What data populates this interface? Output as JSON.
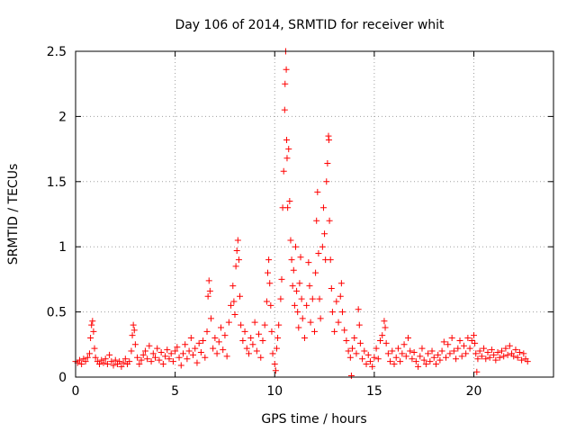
{
  "chart_data": {
    "type": "scatter",
    "title": "Day 106 of 2014, SRMTID for receiver whit",
    "xlabel": "GPS time / hours",
    "ylabel": "SRMTID / TECUs",
    "xlim": [
      0,
      24
    ],
    "ylim": [
      0,
      2.5
    ],
    "xticks": [
      0,
      5,
      10,
      15,
      20
    ],
    "xtick_labels": [
      "0",
      "5",
      "10",
      "15",
      "20"
    ],
    "yticks": [
      0,
      0.5,
      1,
      1.5,
      2,
      2.5
    ],
    "ytick_labels": [
      "0",
      "0.5",
      "1",
      "1.5",
      "2",
      "2.5"
    ],
    "grid": true,
    "marker": "+",
    "color": "#ff0000",
    "series": [
      {
        "name": "SRMTID",
        "points": [
          [
            0.0,
            0.12
          ],
          [
            0.1,
            0.11
          ],
          [
            0.2,
            0.13
          ],
          [
            0.3,
            0.1
          ],
          [
            0.4,
            0.14
          ],
          [
            0.5,
            0.12
          ],
          [
            0.6,
            0.15
          ],
          [
            0.7,
            0.18
          ],
          [
            0.75,
            0.3
          ],
          [
            0.8,
            0.4
          ],
          [
            0.85,
            0.43
          ],
          [
            0.9,
            0.35
          ],
          [
            0.95,
            0.22
          ],
          [
            1.0,
            0.15
          ],
          [
            1.1,
            0.12
          ],
          [
            1.2,
            0.1
          ],
          [
            1.3,
            0.13
          ],
          [
            1.4,
            0.11
          ],
          [
            1.5,
            0.14
          ],
          [
            1.6,
            0.1
          ],
          [
            1.7,
            0.17
          ],
          [
            1.8,
            0.12
          ],
          [
            1.9,
            0.09
          ],
          [
            2.0,
            0.13
          ],
          [
            2.1,
            0.1
          ],
          [
            2.2,
            0.12
          ],
          [
            2.3,
            0.08
          ],
          [
            2.4,
            0.11
          ],
          [
            2.5,
            0.14
          ],
          [
            2.6,
            0.1
          ],
          [
            2.7,
            0.12
          ],
          [
            2.8,
            0.2
          ],
          [
            2.85,
            0.32
          ],
          [
            2.9,
            0.4
          ],
          [
            2.95,
            0.36
          ],
          [
            3.0,
            0.25
          ],
          [
            3.1,
            0.15
          ],
          [
            3.2,
            0.1
          ],
          [
            3.3,
            0.13
          ],
          [
            3.4,
            0.17
          ],
          [
            3.5,
            0.2
          ],
          [
            3.6,
            0.14
          ],
          [
            3.7,
            0.24
          ],
          [
            3.8,
            0.12
          ],
          [
            3.9,
            0.18
          ],
          [
            4.0,
            0.15
          ],
          [
            4.1,
            0.22
          ],
          [
            4.2,
            0.13
          ],
          [
            4.3,
            0.19
          ],
          [
            4.4,
            0.1
          ],
          [
            4.5,
            0.16
          ],
          [
            4.6,
            0.21
          ],
          [
            4.7,
            0.14
          ],
          [
            4.8,
            0.18
          ],
          [
            4.9,
            0.12
          ],
          [
            5.0,
            0.2
          ],
          [
            5.1,
            0.23
          ],
          [
            5.2,
            0.15
          ],
          [
            5.3,
            0.09
          ],
          [
            5.4,
            0.18
          ],
          [
            5.5,
            0.25
          ],
          [
            5.6,
            0.14
          ],
          [
            5.7,
            0.2
          ],
          [
            5.8,
            0.3
          ],
          [
            5.9,
            0.17
          ],
          [
            6.0,
            0.22
          ],
          [
            6.1,
            0.11
          ],
          [
            6.2,
            0.26
          ],
          [
            6.3,
            0.19
          ],
          [
            6.4,
            0.28
          ],
          [
            6.5,
            0.15
          ],
          [
            6.6,
            0.35
          ],
          [
            6.65,
            0.62
          ],
          [
            6.7,
            0.74
          ],
          [
            6.75,
            0.66
          ],
          [
            6.8,
            0.45
          ],
          [
            6.9,
            0.22
          ],
          [
            7.0,
            0.3
          ],
          [
            7.1,
            0.18
          ],
          [
            7.2,
            0.27
          ],
          [
            7.3,
            0.38
          ],
          [
            7.4,
            0.21
          ],
          [
            7.5,
            0.32
          ],
          [
            7.6,
            0.16
          ],
          [
            7.7,
            0.42
          ],
          [
            7.8,
            0.55
          ],
          [
            7.9,
            0.7
          ],
          [
            7.95,
            0.58
          ],
          [
            8.0,
            0.48
          ],
          [
            8.05,
            0.85
          ],
          [
            8.1,
            0.97
          ],
          [
            8.15,
            1.05
          ],
          [
            8.2,
            0.9
          ],
          [
            8.25,
            0.62
          ],
          [
            8.3,
            0.4
          ],
          [
            8.4,
            0.28
          ],
          [
            8.5,
            0.35
          ],
          [
            8.6,
            0.22
          ],
          [
            8.7,
            0.18
          ],
          [
            8.8,
            0.3
          ],
          [
            8.9,
            0.25
          ],
          [
            9.0,
            0.42
          ],
          [
            9.1,
            0.2
          ],
          [
            9.2,
            0.33
          ],
          [
            9.3,
            0.15
          ],
          [
            9.4,
            0.28
          ],
          [
            9.5,
            0.4
          ],
          [
            9.6,
            0.58
          ],
          [
            9.65,
            0.8
          ],
          [
            9.7,
            0.9
          ],
          [
            9.75,
            0.72
          ],
          [
            9.8,
            0.55
          ],
          [
            9.85,
            0.35
          ],
          [
            9.9,
            0.18
          ],
          [
            10.0,
            0.1
          ],
          [
            10.05,
            0.05
          ],
          [
            10.1,
            0.22
          ],
          [
            10.15,
            0.3
          ],
          [
            10.2,
            0.4
          ],
          [
            10.3,
            0.6
          ],
          [
            10.35,
            0.75
          ],
          [
            10.4,
            1.3
          ],
          [
            10.45,
            1.58
          ],
          [
            10.5,
            2.05
          ],
          [
            10.52,
            2.25
          ],
          [
            10.55,
            2.5
          ],
          [
            10.58,
            2.36
          ],
          [
            10.6,
            1.82
          ],
          [
            10.62,
            1.68
          ],
          [
            10.65,
            1.3
          ],
          [
            10.7,
            1.75
          ],
          [
            10.75,
            1.35
          ],
          [
            10.8,
            1.05
          ],
          [
            10.85,
            0.9
          ],
          [
            10.9,
            0.7
          ],
          [
            10.95,
            0.82
          ],
          [
            11.0,
            0.55
          ],
          [
            11.05,
            1.0
          ],
          [
            11.1,
            0.66
          ],
          [
            11.15,
            0.5
          ],
          [
            11.2,
            0.38
          ],
          [
            11.25,
            0.72
          ],
          [
            11.3,
            0.92
          ],
          [
            11.35,
            0.6
          ],
          [
            11.4,
            0.45
          ],
          [
            11.5,
            0.3
          ],
          [
            11.6,
            0.55
          ],
          [
            11.7,
            0.88
          ],
          [
            11.75,
            0.7
          ],
          [
            11.8,
            0.42
          ],
          [
            11.9,
            0.6
          ],
          [
            12.0,
            0.35
          ],
          [
            12.05,
            0.8
          ],
          [
            12.1,
            1.2
          ],
          [
            12.15,
            1.42
          ],
          [
            12.2,
            0.95
          ],
          [
            12.25,
            0.6
          ],
          [
            12.3,
            0.45
          ],
          [
            12.4,
            1.0
          ],
          [
            12.45,
            1.3
          ],
          [
            12.5,
            1.1
          ],
          [
            12.55,
            0.9
          ],
          [
            12.6,
            1.5
          ],
          [
            12.65,
            1.64
          ],
          [
            12.7,
            1.85
          ],
          [
            12.72,
            1.82
          ],
          [
            12.75,
            1.2
          ],
          [
            12.8,
            0.9
          ],
          [
            12.85,
            0.68
          ],
          [
            12.9,
            0.5
          ],
          [
            13.0,
            0.35
          ],
          [
            13.1,
            0.58
          ],
          [
            13.2,
            0.42
          ],
          [
            13.3,
            0.62
          ],
          [
            13.35,
            0.72
          ],
          [
            13.4,
            0.5
          ],
          [
            13.5,
            0.36
          ],
          [
            13.6,
            0.28
          ],
          [
            13.7,
            0.2
          ],
          [
            13.8,
            0.15
          ],
          [
            13.85,
            0.01
          ],
          [
            13.9,
            0.22
          ],
          [
            14.0,
            0.3
          ],
          [
            14.1,
            0.18
          ],
          [
            14.2,
            0.52
          ],
          [
            14.25,
            0.4
          ],
          [
            14.3,
            0.26
          ],
          [
            14.4,
            0.14
          ],
          [
            14.5,
            0.2
          ],
          [
            14.6,
            0.1
          ],
          [
            14.7,
            0.17
          ],
          [
            14.8,
            0.12
          ],
          [
            14.9,
            0.08
          ],
          [
            15.0,
            0.15
          ],
          [
            15.1,
            0.22
          ],
          [
            15.2,
            0.14
          ],
          [
            15.3,
            0.28
          ],
          [
            15.4,
            0.32
          ],
          [
            15.5,
            0.43
          ],
          [
            15.55,
            0.38
          ],
          [
            15.6,
            0.26
          ],
          [
            15.7,
            0.18
          ],
          [
            15.8,
            0.12
          ],
          [
            15.9,
            0.2
          ],
          [
            16.0,
            0.1
          ],
          [
            16.1,
            0.15
          ],
          [
            16.2,
            0.22
          ],
          [
            16.3,
            0.12
          ],
          [
            16.4,
            0.18
          ],
          [
            16.5,
            0.25
          ],
          [
            16.6,
            0.16
          ],
          [
            16.7,
            0.3
          ],
          [
            16.8,
            0.2
          ],
          [
            16.9,
            0.14
          ],
          [
            17.0,
            0.19
          ],
          [
            17.1,
            0.12
          ],
          [
            17.2,
            0.08
          ],
          [
            17.3,
            0.16
          ],
          [
            17.4,
            0.22
          ],
          [
            17.5,
            0.13
          ],
          [
            17.6,
            0.1
          ],
          [
            17.7,
            0.18
          ],
          [
            17.8,
            0.12
          ],
          [
            17.9,
            0.2
          ],
          [
            18.0,
            0.15
          ],
          [
            18.1,
            0.1
          ],
          [
            18.2,
            0.17
          ],
          [
            18.3,
            0.13
          ],
          [
            18.4,
            0.2
          ],
          [
            18.5,
            0.27
          ],
          [
            18.6,
            0.15
          ],
          [
            18.7,
            0.25
          ],
          [
            18.8,
            0.18
          ],
          [
            18.9,
            0.3
          ],
          [
            19.0,
            0.2
          ],
          [
            19.1,
            0.14
          ],
          [
            19.2,
            0.22
          ],
          [
            19.3,
            0.28
          ],
          [
            19.4,
            0.16
          ],
          [
            19.5,
            0.24
          ],
          [
            19.6,
            0.18
          ],
          [
            19.7,
            0.3
          ],
          [
            19.8,
            0.22
          ],
          [
            19.9,
            0.28
          ],
          [
            20.0,
            0.32
          ],
          [
            20.05,
            0.26
          ],
          [
            20.1,
            0.18
          ],
          [
            20.15,
            0.04
          ],
          [
            20.2,
            0.14
          ],
          [
            20.3,
            0.2
          ],
          [
            20.4,
            0.16
          ],
          [
            20.5,
            0.22
          ],
          [
            20.6,
            0.14
          ],
          [
            20.7,
            0.19
          ],
          [
            20.8,
            0.15
          ],
          [
            20.9,
            0.21
          ],
          [
            21.0,
            0.17
          ],
          [
            21.1,
            0.13
          ],
          [
            21.2,
            0.19
          ],
          [
            21.3,
            0.15
          ],
          [
            21.4,
            0.2
          ],
          [
            21.5,
            0.16
          ],
          [
            21.6,
            0.22
          ],
          [
            21.7,
            0.17
          ],
          [
            21.8,
            0.24
          ],
          [
            21.9,
            0.18
          ],
          [
            22.0,
            0.16
          ],
          [
            22.1,
            0.21
          ],
          [
            22.2,
            0.15
          ],
          [
            22.3,
            0.19
          ],
          [
            22.4,
            0.13
          ],
          [
            22.5,
            0.18
          ],
          [
            22.6,
            0.14
          ],
          [
            22.7,
            0.12
          ]
        ]
      }
    ]
  }
}
